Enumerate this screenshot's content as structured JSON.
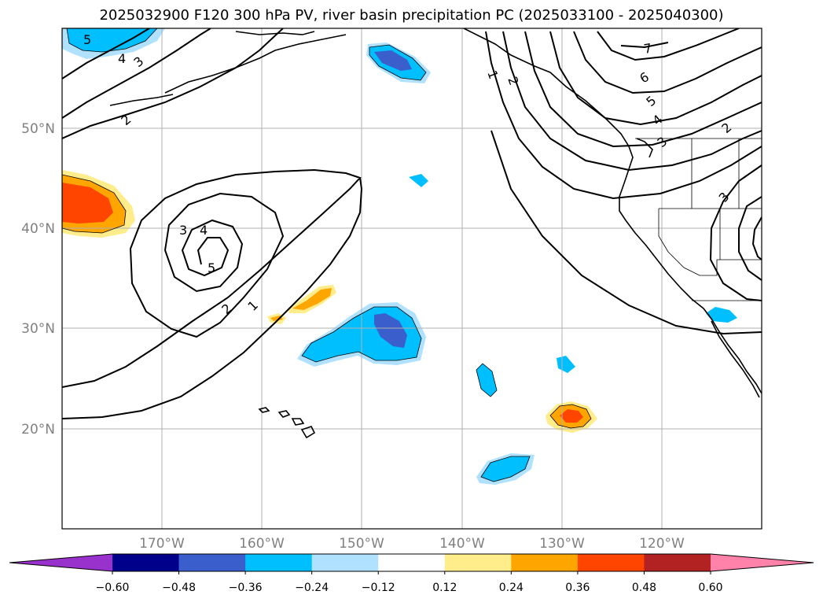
{
  "title": "2025032900 F120 300 hPa PV, river basin precipitation PC (2025033100 - 2025040300)",
  "latitude_labels": [
    "50°N",
    "40°N",
    "30°N",
    "20°N"
  ],
  "longitude_labels": [
    "170°W",
    "160°W",
    "150°W",
    "140°W",
    "130°W",
    "120°W"
  ],
  "colorbar": {
    "tick_labels": [
      "−0.60",
      "−0.48",
      "−0.36",
      "−0.24",
      "−0.12",
      "0.12",
      "0.24",
      "0.36",
      "0.48",
      "0.60"
    ],
    "colors": [
      "#9932cc",
      "#00008b",
      "#3a5fcd",
      "#00bfff",
      "#b0e2ff",
      "#ffffff",
      "#ffec8b",
      "#ffa500",
      "#ff4500",
      "#b22222",
      "#ff82ab"
    ]
  },
  "pv_contour_labels": [
    "1",
    "2",
    "2",
    "3",
    "3",
    "3",
    "4",
    "4",
    "4",
    "5",
    "5",
    "5",
    "6",
    "7",
    "1",
    "2",
    "2",
    "3"
  ]
}
